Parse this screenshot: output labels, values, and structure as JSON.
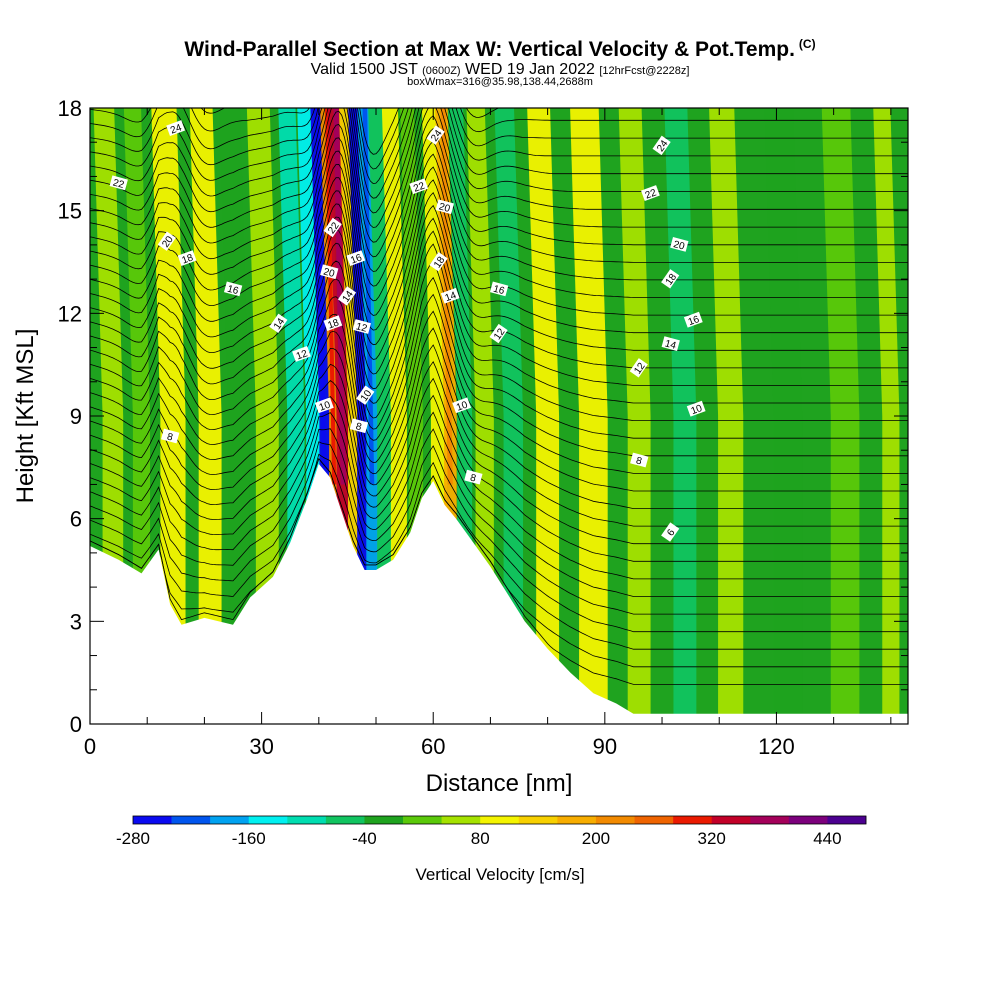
{
  "header": {
    "title": "Wind-Parallel Section at Max W: Vertical Velocity & Pot.Temp.",
    "copyright": "(C)",
    "valid_prefix": "Valid 1500 JST",
    "valid_utc": "(0600Z)",
    "valid_date": "WED 19 Jan 2022",
    "forecast": "[12hrFcst@2228z]",
    "box_info": "boxWmax=316@35.98,138.44,2688m"
  },
  "chart_data": {
    "type": "heatmap",
    "title": "Wind-Parallel Section at Max W: Vertical Velocity & Pot.Temp.",
    "xlabel": "Distance [nm]",
    "ylabel": "Height [Kft MSL]",
    "xlim": [
      0,
      143
    ],
    "ylim": [
      0,
      18
    ],
    "x_ticks": [
      0,
      30,
      60,
      90,
      120
    ],
    "y_ticks": [
      0,
      3,
      6,
      9,
      12,
      15,
      18
    ],
    "x_tick_labels": [
      "0",
      "30",
      "60",
      "90",
      "120"
    ],
    "y_tick_labels": [
      "0",
      "3",
      "6",
      "9",
      "12",
      "15",
      "18"
    ],
    "colorbar": {
      "label": "Vertical Velocity [cm/s]",
      "tick_labels": [
        "-280",
        "-160",
        "-40",
        "80",
        "200",
        "320",
        "440"
      ],
      "tick_values": [
        -280,
        -160,
        -40,
        80,
        200,
        320,
        440
      ],
      "levels": [
        -280,
        -240,
        -200,
        -160,
        -120,
        -80,
        -40,
        0,
        40,
        80,
        120,
        160,
        200,
        240,
        280,
        320,
        360,
        400,
        440,
        480
      ],
      "colors": [
        "#0a0af0",
        "#0055ee",
        "#00a2f0",
        "#00f0f0",
        "#00ddb0",
        "#11c460",
        "#1fa31f",
        "#5bc90a",
        "#a5e200",
        "#f4f400",
        "#f7d000",
        "#f7ad00",
        "#f28a00",
        "#ef6400",
        "#ea1a00",
        "#c20028",
        "#a4005a",
        "#7c007c",
        "#4c0090"
      ]
    },
    "terrain": {
      "x_nm": [
        0,
        5,
        9,
        12,
        14,
        16,
        20,
        25,
        28,
        32,
        35,
        38,
        40,
        42,
        44,
        46,
        48,
        50,
        53,
        56,
        58,
        60,
        62,
        64,
        67,
        70,
        73,
        76,
        80,
        84,
        88,
        92,
        95,
        100,
        105,
        110,
        115,
        120,
        125,
        130,
        135,
        140,
        143
      ],
      "height_kft": [
        5.2,
        4.8,
        4.4,
        5.1,
        3.5,
        2.9,
        3.1,
        2.9,
        3.7,
        4.3,
        5.3,
        6.6,
        7.6,
        7.2,
        6.2,
        5.2,
        4.5,
        4.5,
        4.8,
        5.6,
        6.6,
        7.1,
        6.4,
        6.0,
        5.3,
        4.6,
        3.8,
        3.0,
        2.2,
        1.5,
        0.9,
        0.6,
        0.3,
        0.3,
        0.3,
        0.3,
        0.3,
        0.3,
        0.3,
        0.3,
        0.3,
        0.3,
        0.3
      ]
    },
    "velocity_columns": [
      {
        "x": 4,
        "w": 1.8,
        "v": 60
      },
      {
        "x": 9,
        "w": 1.5,
        "v": 20
      },
      {
        "x": 14.5,
        "w": 2.2,
        "v": 110
      },
      {
        "x": 21,
        "w": 2.0,
        "v": 80
      },
      {
        "x": 26,
        "w": 1.8,
        "v": -20
      },
      {
        "x": 31,
        "w": 2.0,
        "v": 70
      },
      {
        "x": 36,
        "w": 1.5,
        "v": -90
      },
      {
        "x": 39,
        "w": 1.2,
        "v": -150
      },
      {
        "x": 41,
        "w": 0.9,
        "v": -260
      },
      {
        "x": 42.7,
        "w": 0.9,
        "v": 230
      },
      {
        "x": 44.3,
        "w": 1.2,
        "v": 330
      },
      {
        "x": 46,
        "w": 0.9,
        "v": 130
      },
      {
        "x": 47.6,
        "w": 0.9,
        "v": -250
      },
      {
        "x": 49.3,
        "w": 1.0,
        "v": -180
      },
      {
        "x": 51.5,
        "w": 1.3,
        "v": -70
      },
      {
        "x": 54,
        "w": 1.4,
        "v": 90
      },
      {
        "x": 57,
        "w": 1.2,
        "v": 30
      },
      {
        "x": 61,
        "w": 1.4,
        "v": 100
      },
      {
        "x": 63,
        "w": 1.1,
        "v": 170
      },
      {
        "x": 65.5,
        "w": 1.3,
        "v": -80
      },
      {
        "x": 69,
        "w": 1.6,
        "v": 60
      },
      {
        "x": 74,
        "w": 1.7,
        "v": -60
      },
      {
        "x": 80,
        "w": 2.0,
        "v": 110
      },
      {
        "x": 88,
        "w": 2.5,
        "v": 100
      },
      {
        "x": 96,
        "w": 2.0,
        "v": 50
      },
      {
        "x": 104,
        "w": 2.0,
        "v": -70
      },
      {
        "x": 112,
        "w": 2.2,
        "v": 40
      },
      {
        "x": 122,
        "w": 2.5,
        "v": -30
      },
      {
        "x": 132,
        "w": 2.5,
        "v": 30
      },
      {
        "x": 140,
        "w": 1.5,
        "v": 60
      }
    ],
    "contour_labels": [
      {
        "x": 15,
        "y": 17.4,
        "text": "24"
      },
      {
        "x": 5,
        "y": 15.8,
        "text": "22"
      },
      {
        "x": 13.5,
        "y": 14.1,
        "text": "20"
      },
      {
        "x": 17,
        "y": 13.6,
        "text": "18"
      },
      {
        "x": 25,
        "y": 12.7,
        "text": "16"
      },
      {
        "x": 33,
        "y": 11.7,
        "text": "14"
      },
      {
        "x": 37,
        "y": 10.8,
        "text": "12"
      },
      {
        "x": 14,
        "y": 8.4,
        "text": "8"
      },
      {
        "x": 42.5,
        "y": 14.5,
        "text": "22"
      },
      {
        "x": 46.5,
        "y": 13.6,
        "text": "16"
      },
      {
        "x": 41.8,
        "y": 13.2,
        "text": "20"
      },
      {
        "x": 45,
        "y": 12.5,
        "text": "14"
      },
      {
        "x": 42.5,
        "y": 11.7,
        "text": "18"
      },
      {
        "x": 47.5,
        "y": 11.6,
        "text": "12"
      },
      {
        "x": 48.2,
        "y": 9.6,
        "text": "10"
      },
      {
        "x": 41,
        "y": 9.3,
        "text": "10"
      },
      {
        "x": 47,
        "y": 8.7,
        "text": "8"
      },
      {
        "x": 60.5,
        "y": 17.2,
        "text": "24"
      },
      {
        "x": 57.5,
        "y": 15.7,
        "text": "22"
      },
      {
        "x": 62,
        "y": 15.1,
        "text": "20"
      },
      {
        "x": 61,
        "y": 13.5,
        "text": "18"
      },
      {
        "x": 63,
        "y": 12.5,
        "text": "14"
      },
      {
        "x": 71.5,
        "y": 12.7,
        "text": "16"
      },
      {
        "x": 71.5,
        "y": 11.4,
        "text": "12"
      },
      {
        "x": 65,
        "y": 9.3,
        "text": "10"
      },
      {
        "x": 67,
        "y": 7.2,
        "text": "8"
      },
      {
        "x": 100,
        "y": 16.9,
        "text": "24"
      },
      {
        "x": 98,
        "y": 15.5,
        "text": "22"
      },
      {
        "x": 103,
        "y": 14.0,
        "text": "20"
      },
      {
        "x": 101.5,
        "y": 13.0,
        "text": "18"
      },
      {
        "x": 105.5,
        "y": 11.8,
        "text": "16"
      },
      {
        "x": 101.5,
        "y": 11.1,
        "text": "14"
      },
      {
        "x": 96,
        "y": 10.4,
        "text": "12"
      },
      {
        "x": 106,
        "y": 9.2,
        "text": "10"
      },
      {
        "x": 96,
        "y": 7.7,
        "text": "8"
      },
      {
        "x": 101.5,
        "y": 5.6,
        "text": "6"
      }
    ]
  }
}
